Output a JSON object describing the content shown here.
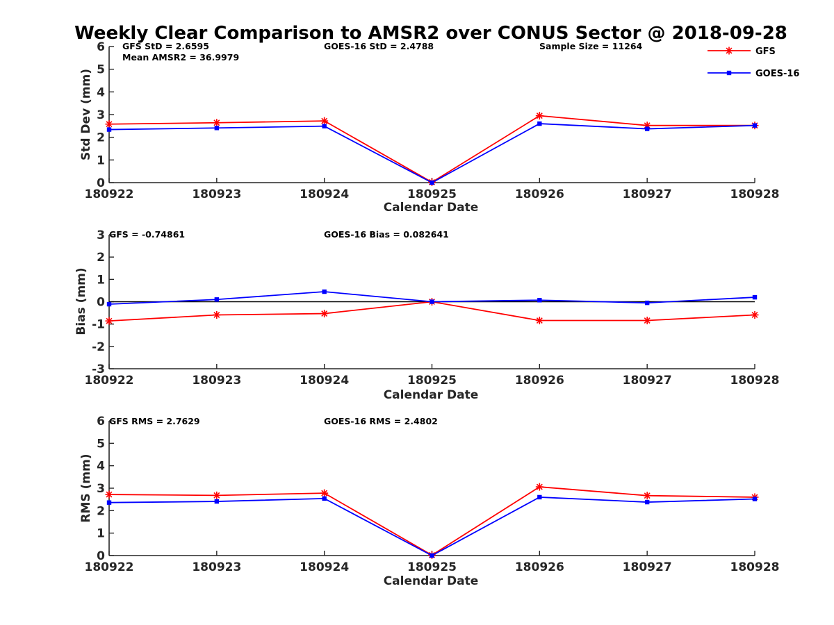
{
  "title": "Weekly Clear Comparison to AMSR2 over CONUS Sector @ 2018-09-28",
  "legend": {
    "placement": "top-right",
    "entries": [
      {
        "label": "GFS",
        "color": "#ff0000",
        "marker": "asterisk"
      },
      {
        "label": "GOES-16",
        "color": "#0000ff",
        "marker": "square"
      }
    ]
  },
  "chart_data": [
    {
      "type": "line",
      "xlabel": "Calendar Date",
      "ylabel": "Std Dev (mm)",
      "categories": [
        "180922",
        "180923",
        "180924",
        "180925",
        "180926",
        "180927",
        "180928"
      ],
      "ylim": [
        0,
        6
      ],
      "yticks": [
        "0",
        "1",
        "2",
        "3",
        "4",
        "5",
        "6"
      ],
      "zero_line": false,
      "annotations": [
        "GFS StD = 2.6595",
        "Mean AMSR2 = 36.9979",
        "GOES-16 StD = 2.4788",
        "Sample Size = 11264"
      ],
      "series": [
        {
          "name": "GFS",
          "color": "#ff0000",
          "marker": "asterisk",
          "values": [
            2.58,
            2.64,
            2.72,
            0.02,
            2.95,
            2.52,
            2.52
          ]
        },
        {
          "name": "GOES-16",
          "color": "#0000ff",
          "marker": "square",
          "values": [
            2.34,
            2.41,
            2.49,
            0.0,
            2.6,
            2.37,
            2.52
          ]
        }
      ]
    },
    {
      "type": "line",
      "xlabel": "Calendar Date",
      "ylabel": "Bias (mm)",
      "categories": [
        "180922",
        "180923",
        "180924",
        "180925",
        "180926",
        "180927",
        "180928"
      ],
      "ylim": [
        -3,
        3
      ],
      "yticks": [
        "-3",
        "-2",
        "-1",
        "0",
        "1",
        "2",
        "3"
      ],
      "zero_line": true,
      "annotations": [
        "GFS = -0.74861",
        "GOES-16 Bias  = 0.082641"
      ],
      "series": [
        {
          "name": "GFS",
          "color": "#ff0000",
          "marker": "asterisk",
          "values": [
            -0.86,
            -0.59,
            -0.53,
            0.0,
            -0.84,
            -0.84,
            -0.59
          ]
        },
        {
          "name": "GOES-16",
          "color": "#0000ff",
          "marker": "square",
          "values": [
            -0.11,
            0.1,
            0.45,
            0.0,
            0.07,
            -0.05,
            0.2
          ]
        }
      ]
    },
    {
      "type": "line",
      "xlabel": "Calendar Date",
      "ylabel": "RMS (mm)",
      "categories": [
        "180922",
        "180923",
        "180924",
        "180925",
        "180926",
        "180927",
        "180928"
      ],
      "ylim": [
        0,
        6
      ],
      "yticks": [
        "0",
        "1",
        "2",
        "3",
        "4",
        "5",
        "6"
      ],
      "zero_line": false,
      "annotations": [
        "GFS RMS = 2.7629",
        "GOES-16 RMS = 2.4802"
      ],
      "series": [
        {
          "name": "GFS",
          "color": "#ff0000",
          "marker": "asterisk",
          "values": [
            2.72,
            2.68,
            2.78,
            0.02,
            3.06,
            2.67,
            2.6
          ]
        },
        {
          "name": "GOES-16",
          "color": "#0000ff",
          "marker": "square",
          "values": [
            2.36,
            2.41,
            2.54,
            0.0,
            2.6,
            2.38,
            2.52
          ]
        }
      ]
    }
  ]
}
